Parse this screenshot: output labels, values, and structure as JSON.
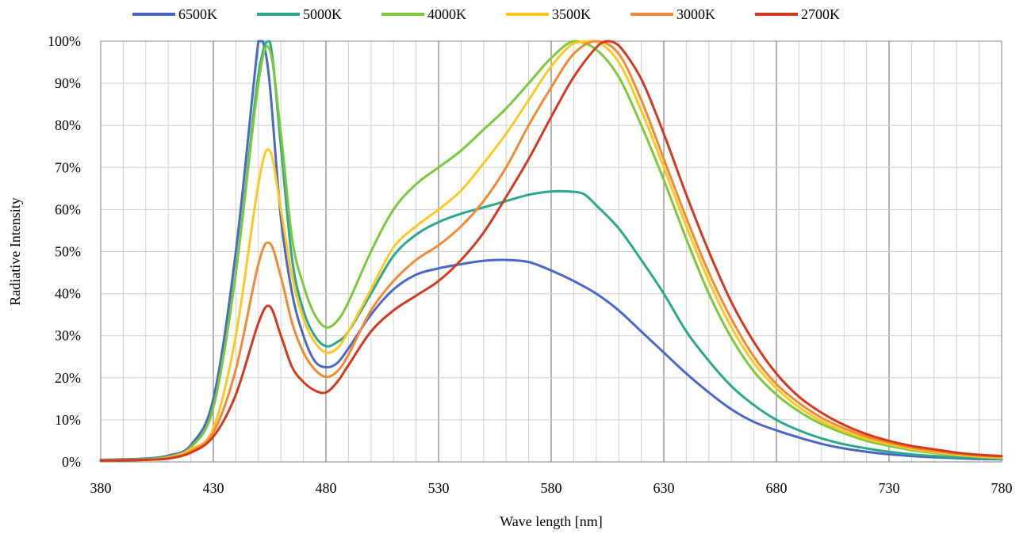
{
  "chart_data": {
    "type": "line",
    "title": "",
    "xlabel": "Wave length [nm]",
    "ylabel": "Radiative Intensity",
    "xlim": [
      380,
      780
    ],
    "ylim": [
      0,
      100
    ],
    "x_ticks": [
      380,
      430,
      480,
      530,
      580,
      630,
      680,
      730,
      780
    ],
    "x_tick_labels": [
      "380",
      "430",
      "480",
      "530",
      "580",
      "630",
      "680",
      "730",
      "780"
    ],
    "y_ticks": [
      0,
      10,
      20,
      30,
      40,
      50,
      60,
      70,
      80,
      90,
      100
    ],
    "y_tick_labels": [
      "0%",
      "10%",
      "20%",
      "30%",
      "40%",
      "50%",
      "60%",
      "70%",
      "80%",
      "90%",
      "100%"
    ],
    "grid": true,
    "legend_position": "top",
    "series": [
      {
        "name": "6500K",
        "color": "#4a67c6",
        "points": [
          [
            380,
            0.5
          ],
          [
            390,
            0.6
          ],
          [
            400,
            0.8
          ],
          [
            410,
            1.5
          ],
          [
            420,
            4
          ],
          [
            430,
            15
          ],
          [
            440,
            50
          ],
          [
            450,
            100
          ],
          [
            452,
            100
          ],
          [
            455,
            90
          ],
          [
            460,
            58
          ],
          [
            465,
            40
          ],
          [
            470,
            30
          ],
          [
            475,
            24
          ],
          [
            480,
            22.5
          ],
          [
            485,
            23.5
          ],
          [
            490,
            27
          ],
          [
            500,
            35
          ],
          [
            510,
            41
          ],
          [
            520,
            44.5
          ],
          [
            530,
            46
          ],
          [
            540,
            47
          ],
          [
            550,
            47.8
          ],
          [
            560,
            48
          ],
          [
            570,
            47.5
          ],
          [
            580,
            45.5
          ],
          [
            590,
            43
          ],
          [
            600,
            40
          ],
          [
            610,
            36
          ],
          [
            620,
            31
          ],
          [
            630,
            26
          ],
          [
            640,
            21
          ],
          [
            650,
            16.5
          ],
          [
            660,
            12.5
          ],
          [
            670,
            9.5
          ],
          [
            680,
            7.5
          ],
          [
            690,
            5.8
          ],
          [
            700,
            4.3
          ],
          [
            710,
            3.2
          ],
          [
            720,
            2.4
          ],
          [
            730,
            1.8
          ],
          [
            740,
            1.4
          ],
          [
            750,
            1.1
          ],
          [
            760,
            0.9
          ],
          [
            770,
            0.7
          ],
          [
            780,
            0.6
          ]
        ]
      },
      {
        "name": "5000K",
        "color": "#2aa889",
        "points": [
          [
            380,
            0.4
          ],
          [
            390,
            0.5
          ],
          [
            400,
            0.7
          ],
          [
            410,
            1.3
          ],
          [
            420,
            3.5
          ],
          [
            430,
            13
          ],
          [
            440,
            45
          ],
          [
            450,
            92
          ],
          [
            455,
            100
          ],
          [
            460,
            75
          ],
          [
            465,
            48
          ],
          [
            470,
            36
          ],
          [
            475,
            30
          ],
          [
            480,
            27.5
          ],
          [
            485,
            28.5
          ],
          [
            490,
            31
          ],
          [
            500,
            40
          ],
          [
            510,
            49
          ],
          [
            520,
            54
          ],
          [
            530,
            57
          ],
          [
            540,
            59
          ],
          [
            550,
            60.5
          ],
          [
            560,
            62
          ],
          [
            570,
            63.5
          ],
          [
            580,
            64.3
          ],
          [
            590,
            64.2
          ],
          [
            595,
            63.5
          ],
          [
            600,
            61
          ],
          [
            610,
            55.5
          ],
          [
            620,
            48
          ],
          [
            630,
            40
          ],
          [
            640,
            31
          ],
          [
            650,
            24
          ],
          [
            660,
            18
          ],
          [
            670,
            13.5
          ],
          [
            680,
            10
          ],
          [
            690,
            7.5
          ],
          [
            700,
            5.6
          ],
          [
            710,
            4.2
          ],
          [
            720,
            3.2
          ],
          [
            730,
            2.4
          ],
          [
            740,
            1.8
          ],
          [
            750,
            1.4
          ],
          [
            760,
            1.1
          ],
          [
            770,
            0.9
          ],
          [
            780,
            0.7
          ]
        ]
      },
      {
        "name": "4000K",
        "color": "#7bc93b",
        "points": [
          [
            380,
            0.4
          ],
          [
            390,
            0.5
          ],
          [
            400,
            0.6
          ],
          [
            410,
            1.2
          ],
          [
            420,
            3.5
          ],
          [
            430,
            13
          ],
          [
            440,
            45
          ],
          [
            450,
            90
          ],
          [
            455,
            98
          ],
          [
            460,
            78
          ],
          [
            465,
            53
          ],
          [
            470,
            42
          ],
          [
            475,
            35
          ],
          [
            480,
            32
          ],
          [
            485,
            33.5
          ],
          [
            490,
            38
          ],
          [
            500,
            50
          ],
          [
            510,
            60
          ],
          [
            520,
            66
          ],
          [
            530,
            70
          ],
          [
            540,
            74
          ],
          [
            550,
            79
          ],
          [
            560,
            84
          ],
          [
            570,
            90
          ],
          [
            580,
            96
          ],
          [
            590,
            100
          ],
          [
            600,
            98
          ],
          [
            610,
            91.5
          ],
          [
            620,
            80
          ],
          [
            630,
            67
          ],
          [
            640,
            53
          ],
          [
            650,
            40
          ],
          [
            660,
            29.5
          ],
          [
            670,
            21.5
          ],
          [
            680,
            16
          ],
          [
            690,
            12
          ],
          [
            700,
            9
          ],
          [
            710,
            6.8
          ],
          [
            720,
            5
          ],
          [
            730,
            3.8
          ],
          [
            740,
            2.8
          ],
          [
            750,
            2.1
          ],
          [
            760,
            1.6
          ],
          [
            770,
            1.2
          ],
          [
            780,
            0.9
          ]
        ]
      },
      {
        "name": "3500K",
        "color": "#ffc720",
        "points": [
          [
            380,
            0.3
          ],
          [
            390,
            0.4
          ],
          [
            400,
            0.5
          ],
          [
            410,
            1
          ],
          [
            420,
            3
          ],
          [
            430,
            8
          ],
          [
            440,
            30
          ],
          [
            450,
            66
          ],
          [
            455,
            74
          ],
          [
            460,
            60
          ],
          [
            465,
            44
          ],
          [
            470,
            34
          ],
          [
            475,
            28.5
          ],
          [
            480,
            26
          ],
          [
            485,
            27
          ],
          [
            490,
            31
          ],
          [
            500,
            41
          ],
          [
            510,
            51
          ],
          [
            520,
            56
          ],
          [
            530,
            60
          ],
          [
            540,
            64.5
          ],
          [
            550,
            71
          ],
          [
            560,
            78
          ],
          [
            570,
            86
          ],
          [
            580,
            94
          ],
          [
            590,
            99.5
          ],
          [
            600,
            100
          ],
          [
            610,
            95
          ],
          [
            620,
            83.5
          ],
          [
            630,
            70
          ],
          [
            640,
            56
          ],
          [
            650,
            43
          ],
          [
            660,
            32
          ],
          [
            670,
            23.5
          ],
          [
            680,
            17.5
          ],
          [
            690,
            13
          ],
          [
            700,
            9.7
          ],
          [
            710,
            7.3
          ],
          [
            720,
            5.5
          ],
          [
            730,
            4.2
          ],
          [
            740,
            3.1
          ],
          [
            750,
            2.3
          ],
          [
            760,
            1.7
          ],
          [
            770,
            1.3
          ],
          [
            780,
            1
          ]
        ]
      },
      {
        "name": "3000K",
        "color": "#f28a35",
        "points": [
          [
            380,
            0.3
          ],
          [
            390,
            0.4
          ],
          [
            400,
            0.5
          ],
          [
            410,
            0.9
          ],
          [
            420,
            2.5
          ],
          [
            430,
            7
          ],
          [
            440,
            22
          ],
          [
            450,
            47
          ],
          [
            455,
            52
          ],
          [
            460,
            44
          ],
          [
            465,
            33
          ],
          [
            470,
            26
          ],
          [
            475,
            22
          ],
          [
            480,
            20.2
          ],
          [
            485,
            21.5
          ],
          [
            490,
            25.5
          ],
          [
            500,
            36
          ],
          [
            510,
            43
          ],
          [
            520,
            48
          ],
          [
            530,
            51.5
          ],
          [
            540,
            56
          ],
          [
            550,
            62
          ],
          [
            560,
            70
          ],
          [
            570,
            80
          ],
          [
            580,
            89
          ],
          [
            590,
            97
          ],
          [
            600,
            100
          ],
          [
            610,
            97
          ],
          [
            620,
            86
          ],
          [
            630,
            72
          ],
          [
            640,
            58
          ],
          [
            650,
            45
          ],
          [
            660,
            34
          ],
          [
            670,
            25
          ],
          [
            680,
            18.5
          ],
          [
            690,
            14
          ],
          [
            700,
            10.5
          ],
          [
            710,
            8
          ],
          [
            720,
            6
          ],
          [
            730,
            4.6
          ],
          [
            740,
            3.4
          ],
          [
            750,
            2.6
          ],
          [
            760,
            2
          ],
          [
            770,
            1.5
          ],
          [
            780,
            1.2
          ]
        ]
      },
      {
        "name": "2700K",
        "color": "#d23a20",
        "points": [
          [
            380,
            0.3
          ],
          [
            390,
            0.4
          ],
          [
            400,
            0.5
          ],
          [
            410,
            0.8
          ],
          [
            420,
            2.2
          ],
          [
            430,
            6
          ],
          [
            440,
            16
          ],
          [
            450,
            33
          ],
          [
            455,
            37
          ],
          [
            460,
            30
          ],
          [
            465,
            22.5
          ],
          [
            470,
            19
          ],
          [
            475,
            17
          ],
          [
            480,
            16.5
          ],
          [
            485,
            19
          ],
          [
            490,
            23
          ],
          [
            500,
            31
          ],
          [
            510,
            36
          ],
          [
            520,
            39.5
          ],
          [
            530,
            43
          ],
          [
            540,
            48
          ],
          [
            550,
            54.5
          ],
          [
            560,
            63
          ],
          [
            570,
            72
          ],
          [
            580,
            82
          ],
          [
            590,
            91.5
          ],
          [
            600,
            98.5
          ],
          [
            605,
            100
          ],
          [
            610,
            99
          ],
          [
            620,
            91
          ],
          [
            630,
            78
          ],
          [
            640,
            63.5
          ],
          [
            650,
            50
          ],
          [
            660,
            38
          ],
          [
            670,
            28.5
          ],
          [
            680,
            21
          ],
          [
            690,
            15.5
          ],
          [
            700,
            11.7
          ],
          [
            710,
            8.8
          ],
          [
            720,
            6.6
          ],
          [
            730,
            5
          ],
          [
            740,
            3.8
          ],
          [
            750,
            3
          ],
          [
            760,
            2.2
          ],
          [
            770,
            1.7
          ],
          [
            780,
            1.4
          ]
        ]
      }
    ]
  }
}
